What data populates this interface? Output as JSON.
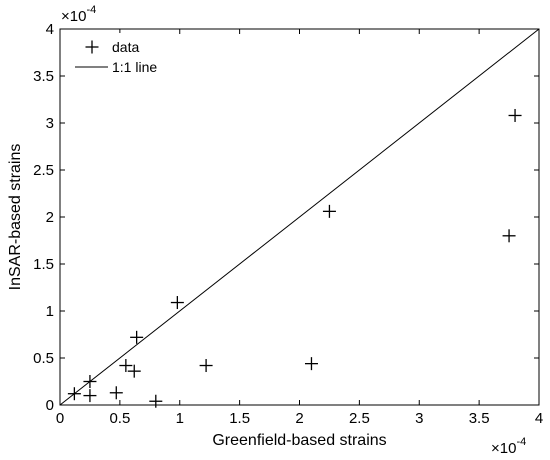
{
  "chart_data": {
    "type": "scatter",
    "title": "",
    "xlabel": "Greenfield-based strains",
    "ylabel": "InSAR-based strains",
    "xlim": [
      0,
      4
    ],
    "ylim": [
      0,
      4
    ],
    "x_ticks": [
      "0",
      "0.5",
      "1",
      "1.5",
      "2",
      "2.5",
      "3",
      "3.5",
      "4"
    ],
    "y_ticks": [
      "0",
      "0.5",
      "1",
      "1.5",
      "2",
      "2.5",
      "3",
      "3.5",
      "4"
    ],
    "x_multiplier": {
      "base": "×10",
      "exponent": "-4"
    },
    "y_multiplier": {
      "base": "×10",
      "exponent": "-4"
    },
    "grid": false,
    "legend_position": "top-left",
    "series": [
      {
        "name": "data",
        "marker": "plus",
        "color": "#000000",
        "points": [
          [
            0.12,
            0.12
          ],
          [
            0.25,
            0.25
          ],
          [
            0.25,
            0.1
          ],
          [
            0.47,
            0.13
          ],
          [
            0.55,
            0.42
          ],
          [
            0.62,
            0.36
          ],
          [
            0.64,
            0.72
          ],
          [
            0.8,
            0.04
          ],
          [
            0.98,
            1.09
          ],
          [
            1.22,
            0.42
          ],
          [
            2.1,
            0.44
          ],
          [
            2.25,
            2.06
          ],
          [
            3.75,
            1.8
          ],
          [
            3.8,
            3.08
          ]
        ]
      },
      {
        "name": "1:1 line",
        "type": "line",
        "color": "#000000",
        "points": [
          [
            0,
            0
          ],
          [
            4,
            4
          ]
        ]
      }
    ]
  }
}
